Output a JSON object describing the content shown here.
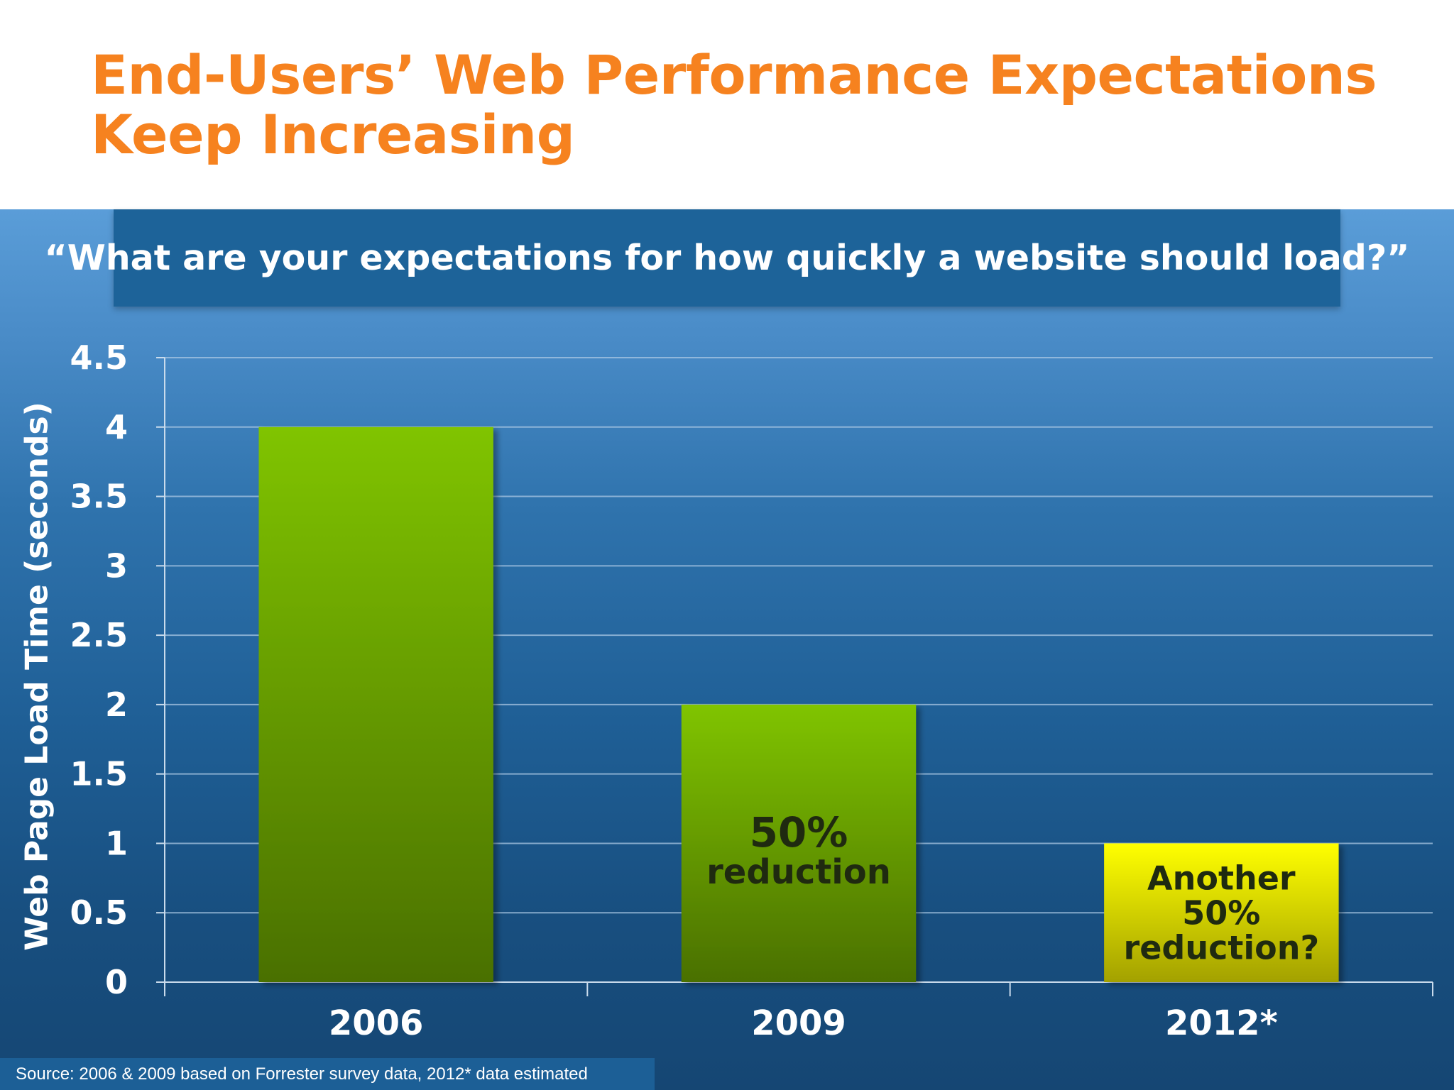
{
  "slide": {
    "title_line1": "End-Users’ Web Performance Expectations",
    "title_line2": "Keep Increasing",
    "question": "“What are your expectations for how quickly a website should load?”",
    "source": "Source: 2006 & 2009 based on Forrester survey data, 2012* data estimated"
  },
  "colors": {
    "title": "#f6821f",
    "bar_green_top": "#80c400",
    "bar_green_bottom": "#4a7003",
    "bar_yellow_top": "#ffff00",
    "bar_yellow_bottom": "#a3a100"
  },
  "chart_data": {
    "type": "bar",
    "title": "",
    "xlabel": "",
    "ylabel": "Web Page Load Time (seconds)",
    "categories": [
      "2006",
      "2009",
      "2012*"
    ],
    "values": [
      4,
      2,
      1
    ],
    "bar_styles": [
      "green",
      "green",
      "yellow"
    ],
    "ylim": [
      0,
      4.5
    ],
    "yticks": [
      "0",
      "0.5",
      "1",
      "1.5",
      "2",
      "2.5",
      "3",
      "3.5",
      "4",
      "4.5"
    ],
    "grid": true,
    "annotations": [
      {
        "category": "2009",
        "lines": [
          "50%",
          "reduction"
        ]
      },
      {
        "category": "2012*",
        "lines": [
          "Another",
          "50%",
          "reduction?"
        ]
      }
    ]
  }
}
